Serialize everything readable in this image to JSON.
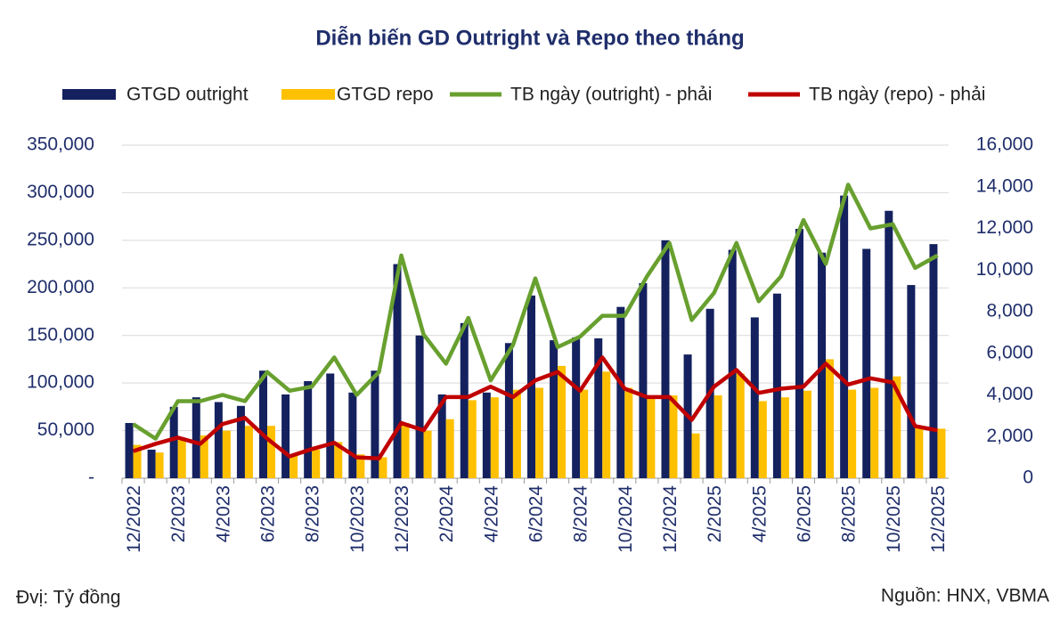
{
  "chart_data": {
    "type": "bar-line",
    "title": "Diễn biến GD Outright và Repo theo tháng",
    "unit_note": "Đvị: Tỷ đồng",
    "source": "Nguồn: HNX, VBMA",
    "categories": [
      "12/2022",
      null,
      "2/2023",
      null,
      "4/2023",
      null,
      "6/2023",
      null,
      "8/2023",
      null,
      "10/2023",
      null,
      "12/2023",
      null,
      "2/2024",
      null,
      "4/2024",
      null,
      "6/2024",
      null,
      "8/2024",
      null,
      "10/2024",
      null,
      "12/2024",
      null,
      "2/2025",
      null,
      "4/2025",
      null,
      "6/2025",
      null,
      "8/2025",
      null,
      "10/2025",
      null,
      "12/2025"
    ],
    "series": [
      {
        "name": "GTGD outright",
        "type": "bar",
        "color": "#14215e",
        "values": [
          58000,
          30000,
          75000,
          85000,
          80000,
          76000,
          113000,
          88000,
          102000,
          110000,
          90000,
          113000,
          225000,
          150000,
          88000,
          163000,
          90000,
          142000,
          192000,
          145000,
          148000,
          147000,
          180000,
          205000,
          250000,
          130000,
          178000,
          240000,
          169000,
          194000,
          262000,
          237000,
          297000,
          241000,
          281000,
          203000,
          246000
        ]
      },
      {
        "name": "GTGD repo",
        "type": "bar",
        "color": "#ffc000",
        "values": [
          35000,
          27000,
          40000,
          45000,
          50000,
          55000,
          55000,
          25000,
          30000,
          38000,
          25000,
          22000,
          58000,
          50000,
          62000,
          82000,
          85000,
          93000,
          95000,
          118000,
          93000,
          112000,
          95000,
          85000,
          87000,
          47000,
          87000,
          110000,
          81000,
          85000,
          92000,
          125000,
          93000,
          95000,
          107000,
          55000,
          52000
        ]
      },
      {
        "name": "TB ngày (outright) - phải",
        "type": "line",
        "axis": "y2",
        "color": "#68a02f",
        "values": [
          2600,
          1900,
          3700,
          3700,
          4000,
          3700,
          5100,
          4200,
          4400,
          5800,
          4000,
          5100,
          10700,
          6900,
          5500,
          7700,
          4700,
          6400,
          9600,
          6300,
          6800,
          7800,
          7800,
          9700,
          11300,
          7600,
          8900,
          11300,
          8500,
          9700,
          12400,
          10300,
          14100,
          12000,
          12200,
          10100,
          10700
        ]
      },
      {
        "name": "TB ngày (repo) - phải",
        "type": "line",
        "axis": "y2",
        "color": "#c00000",
        "values": [
          1300,
          1650,
          1950,
          1650,
          2600,
          2900,
          1900,
          1050,
          1400,
          1700,
          1000,
          950,
          2650,
          2300,
          3900,
          3900,
          4400,
          3900,
          4700,
          5100,
          4200,
          5800,
          4300,
          3900,
          3900,
          2800,
          4400,
          5200,
          4100,
          4300,
          4400,
          5500,
          4500,
          4800,
          4600,
          2500,
          2300
        ]
      }
    ],
    "ylim": [
      0,
      350000
    ],
    "yticks": [
      {
        "value": 0,
        "label": "-"
      },
      {
        "value": 50000,
        "label": "50,000"
      },
      {
        "value": 100000,
        "label": "100,000"
      },
      {
        "value": 150000,
        "label": "150,000"
      },
      {
        "value": 200000,
        "label": "200,000"
      },
      {
        "value": 250000,
        "label": "250,000"
      },
      {
        "value": 300000,
        "label": "300,000"
      },
      {
        "value": 350000,
        "label": "350,000"
      }
    ],
    "y2lim": [
      0,
      16000
    ],
    "y2ticks": [
      0,
      {
        "value": 2000,
        "label": "2,000"
      },
      {
        "value": 4000,
        "label": "4,000"
      },
      {
        "value": 6000,
        "label": "6,000"
      },
      {
        "value": 8000,
        "label": "8,000"
      },
      {
        "value": 10000,
        "label": "10,000"
      },
      {
        "value": 12000,
        "label": "12,000"
      },
      {
        "value": 14000,
        "label": "14,000"
      },
      {
        "value": 16000,
        "label": "16,000"
      }
    ],
    "grid": true
  }
}
